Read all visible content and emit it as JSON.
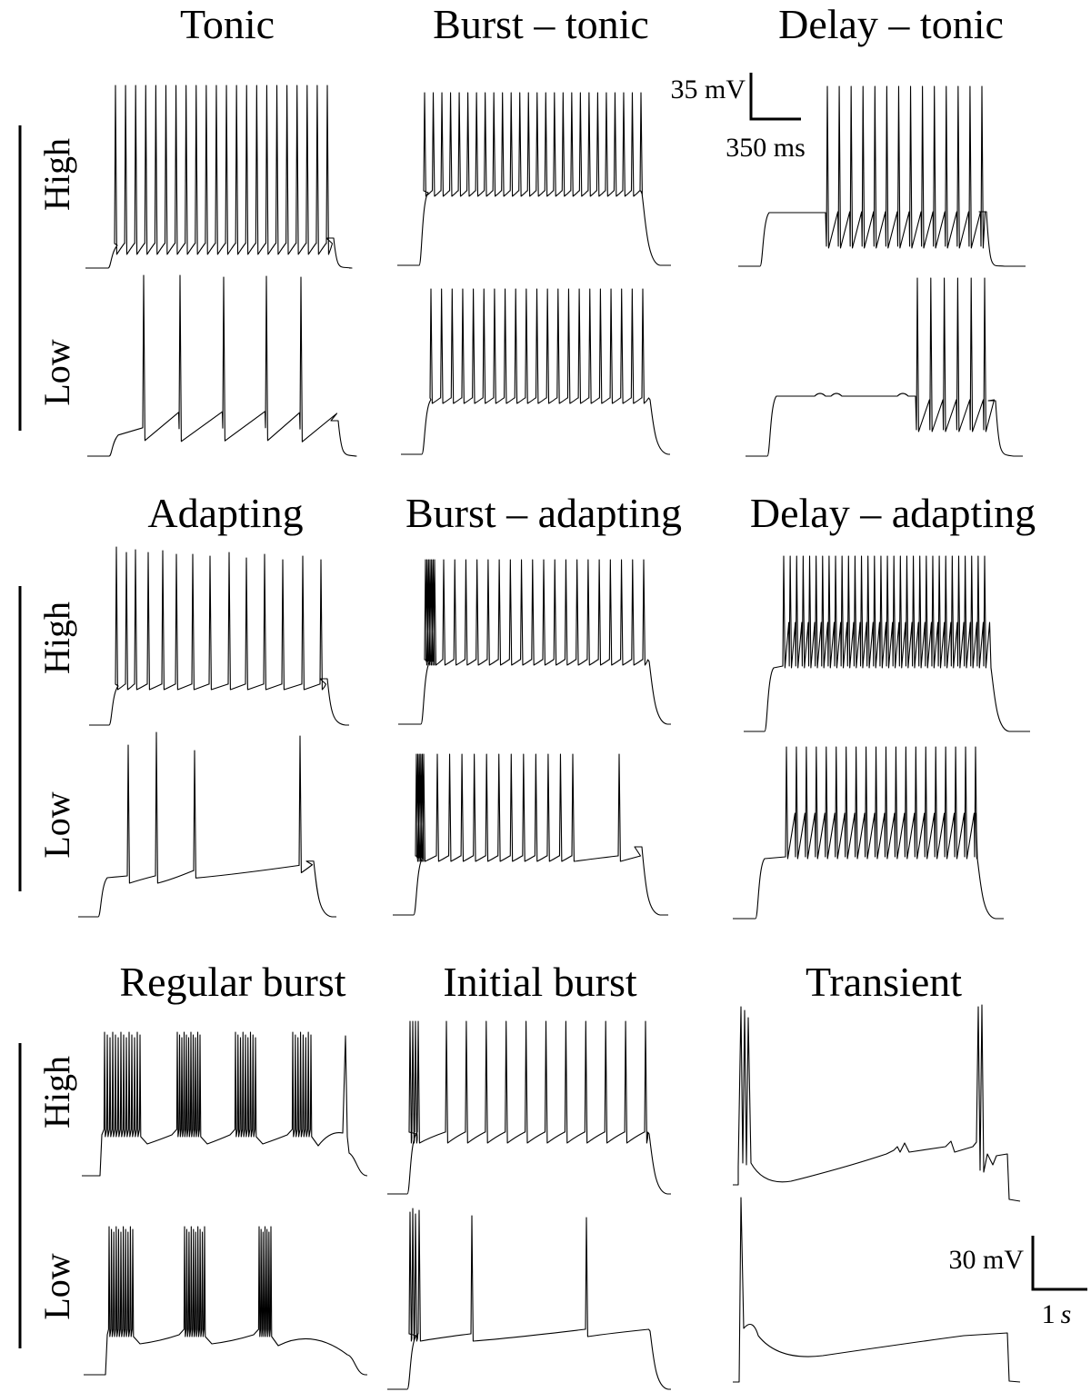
{
  "row_labels": {
    "high": "High",
    "low": "Low"
  },
  "scale_bar_1": {
    "voltage": "35 mV",
    "time": "350 ms"
  },
  "scale_bar_2": {
    "voltage": "30 mV",
    "time_value": "1",
    "time_unit": "s"
  },
  "panels": [
    {
      "title": "Tonic"
    },
    {
      "title": "Burst – tonic"
    },
    {
      "title": "Delay – tonic"
    },
    {
      "title": "Adapting"
    },
    {
      "title": "Burst – adapting"
    },
    {
      "title": "Delay – adapting"
    },
    {
      "title": "Regular burst"
    },
    {
      "title": "Initial burst"
    },
    {
      "title": "Transient"
    }
  ],
  "colors": {
    "trace": "#000000",
    "background": "#ffffff"
  }
}
